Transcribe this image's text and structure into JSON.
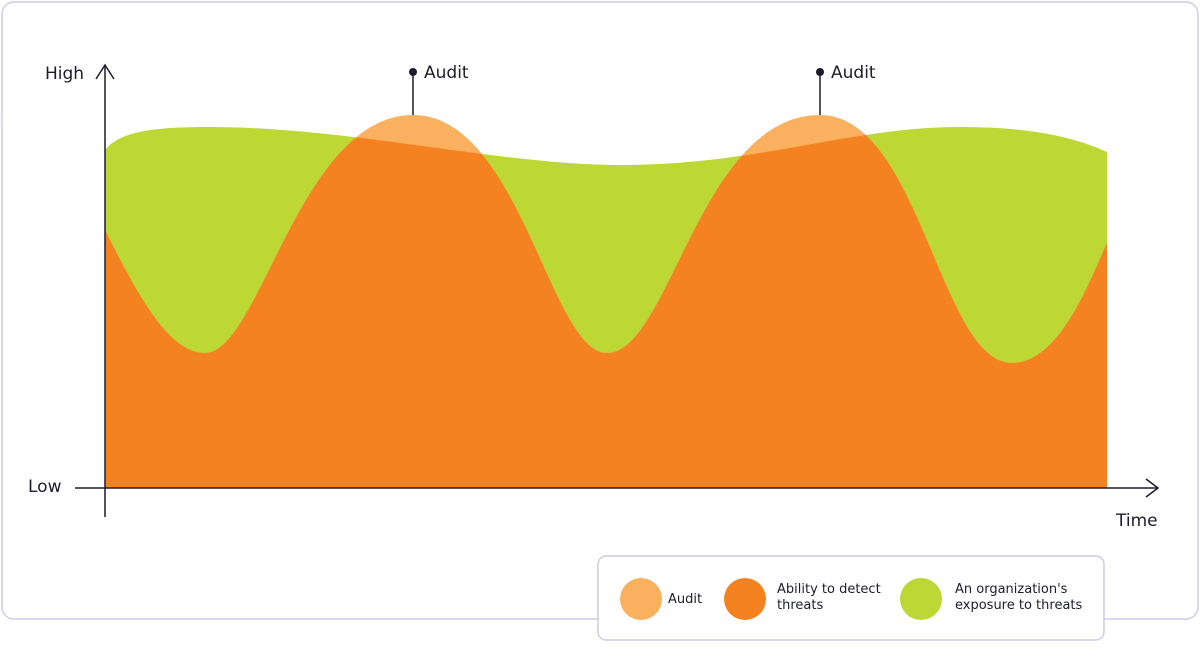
{
  "axes": {
    "y_high": "High",
    "y_low": "Low",
    "x": "Time"
  },
  "annotations": [
    "Audit",
    "Audit"
  ],
  "legend": [
    {
      "lines": [
        "Audit"
      ]
    },
    {
      "lines": [
        "Ability to detect",
        "threats"
      ]
    },
    {
      "lines": [
        "An organization's",
        "exposure to threats"
      ]
    }
  ]
}
